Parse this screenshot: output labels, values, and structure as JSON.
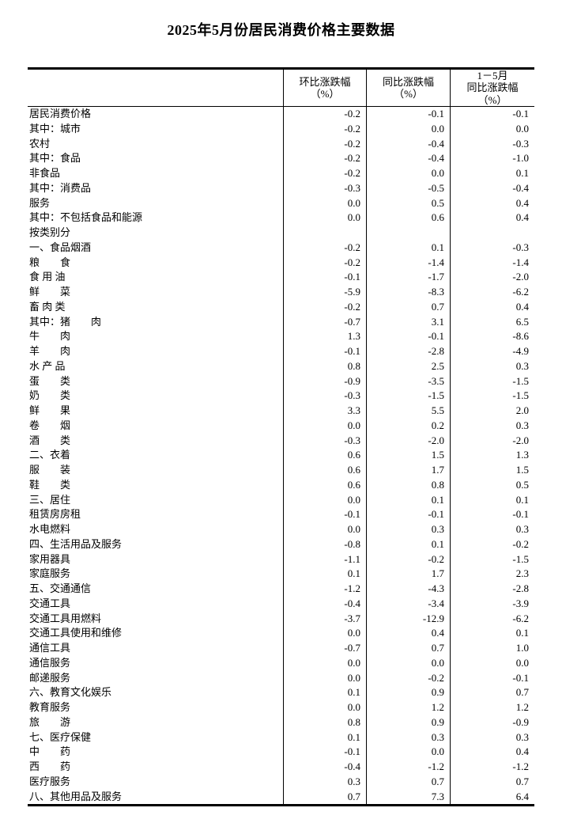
{
  "page": {
    "title": "2025年5月份居民消费价格主要数据"
  },
  "table": {
    "header": {
      "mom": [
        "环比涨跌幅",
        "（%）"
      ],
      "yoy": [
        "同比涨跌幅",
        "（%）"
      ],
      "cum": [
        "1－5月",
        "同比涨跌幅",
        "（%）"
      ]
    },
    "rows": [
      {
        "label": "居民消费价格",
        "indent": 0,
        "mom": "-0.2",
        "yoy": "-0.1",
        "cum": "-0.1"
      },
      {
        "label": "其中：城市",
        "indent": 1,
        "mom": "-0.2",
        "yoy": "0.0",
        "cum": "0.0"
      },
      {
        "label": "农村",
        "indent": 3,
        "mom": "-0.2",
        "yoy": "-0.4",
        "cum": "-0.3"
      },
      {
        "label": "其中：食品",
        "indent": 1,
        "mom": "-0.2",
        "yoy": "-0.4",
        "cum": "-1.0"
      },
      {
        "label": "非食品",
        "indent": 3,
        "mom": "-0.2",
        "yoy": "0.0",
        "cum": "0.1"
      },
      {
        "label": "其中：消费品",
        "indent": 1,
        "mom": "-0.3",
        "yoy": "-0.5",
        "cum": "-0.4"
      },
      {
        "label": "服务",
        "indent": 3,
        "mom": "0.0",
        "yoy": "0.5",
        "cum": "0.4"
      },
      {
        "label": "其中：不包括食品和能源",
        "indent": 1,
        "mom": "0.0",
        "yoy": "0.6",
        "cum": "0.4"
      },
      {
        "label": "按类别分",
        "indent": 0,
        "mom": "",
        "yoy": "",
        "cum": ""
      },
      {
        "label": "一、食品烟酒",
        "indent": 0,
        "mom": "-0.2",
        "yoy": "0.1",
        "cum": "-0.3"
      },
      {
        "label": "粮　　食",
        "indent": 1,
        "mom": "-0.2",
        "yoy": "-1.4",
        "cum": "-1.4"
      },
      {
        "label": "食 用 油",
        "indent": 1,
        "mom": "-0.1",
        "yoy": "-1.7",
        "cum": "-2.0"
      },
      {
        "label": "鲜　　菜",
        "indent": 1,
        "mom": "-5.9",
        "yoy": "-8.3",
        "cum": "-6.2"
      },
      {
        "label": "畜 肉 类",
        "indent": 1,
        "mom": "-0.2",
        "yoy": "0.7",
        "cum": "0.4"
      },
      {
        "label": "其中：猪　　肉",
        "indent": 2,
        "mom": "-0.7",
        "yoy": "3.1",
        "cum": "6.5"
      },
      {
        "label": "牛　　肉",
        "indent": 4,
        "mom": "1.3",
        "yoy": "-0.1",
        "cum": "-8.6"
      },
      {
        "label": "羊　　肉",
        "indent": 4,
        "mom": "-0.1",
        "yoy": "-2.8",
        "cum": "-4.9"
      },
      {
        "label": "水 产 品",
        "indent": 1,
        "mom": "0.8",
        "yoy": "2.5",
        "cum": "0.3"
      },
      {
        "label": "蛋　　类",
        "indent": 1,
        "mom": "-0.9",
        "yoy": "-3.5",
        "cum": "-1.5"
      },
      {
        "label": "奶　　类",
        "indent": 1,
        "mom": "-0.3",
        "yoy": "-1.5",
        "cum": "-1.5"
      },
      {
        "label": "鲜　　果",
        "indent": 1,
        "mom": "3.3",
        "yoy": "5.5",
        "cum": "2.0"
      },
      {
        "label": "卷　　烟",
        "indent": 1,
        "mom": "0.0",
        "yoy": "0.2",
        "cum": "0.3"
      },
      {
        "label": "酒　　类",
        "indent": 1,
        "mom": "-0.3",
        "yoy": "-2.0",
        "cum": "-2.0"
      },
      {
        "label": "二、衣着",
        "indent": 0,
        "mom": "0.6",
        "yoy": "1.5",
        "cum": "1.3"
      },
      {
        "label": "服　　装",
        "indent": 1,
        "mom": "0.6",
        "yoy": "1.7",
        "cum": "1.5"
      },
      {
        "label": "鞋　　类",
        "indent": 1,
        "mom": "0.6",
        "yoy": "0.8",
        "cum": "0.5"
      },
      {
        "label": "三、居住",
        "indent": 0,
        "mom": "0.0",
        "yoy": "0.1",
        "cum": "0.1"
      },
      {
        "label": "租赁房房租",
        "indent": 1,
        "mom": "-0.1",
        "yoy": "-0.1",
        "cum": "-0.1"
      },
      {
        "label": "水电燃料",
        "indent": 1,
        "mom": "0.0",
        "yoy": "0.3",
        "cum": "0.3"
      },
      {
        "label": "四、生活用品及服务",
        "indent": 0,
        "mom": "-0.8",
        "yoy": "0.1",
        "cum": "-0.2"
      },
      {
        "label": "家用器具",
        "indent": 1,
        "mom": "-1.1",
        "yoy": "-0.2",
        "cum": "-1.5"
      },
      {
        "label": "家庭服务",
        "indent": 1,
        "mom": "0.1",
        "yoy": "1.7",
        "cum": "2.3"
      },
      {
        "label": "五、交通通信",
        "indent": 0,
        "mom": "-1.2",
        "yoy": "-4.3",
        "cum": "-2.8"
      },
      {
        "label": "交通工具",
        "indent": 1,
        "mom": "-0.4",
        "yoy": "-3.4",
        "cum": "-3.9"
      },
      {
        "label": "交通工具用燃料",
        "indent": 1,
        "mom": "-3.7",
        "yoy": "-12.9",
        "cum": "-6.2"
      },
      {
        "label": "交通工具使用和维修",
        "indent": 1,
        "mom": "0.0",
        "yoy": "0.4",
        "cum": "0.1"
      },
      {
        "label": "通信工具",
        "indent": 1,
        "mom": "-0.7",
        "yoy": "0.7",
        "cum": "1.0"
      },
      {
        "label": "通信服务",
        "indent": 1,
        "mom": "0.0",
        "yoy": "0.0",
        "cum": "0.0"
      },
      {
        "label": "邮递服务",
        "indent": 1,
        "mom": "0.0",
        "yoy": "-0.2",
        "cum": "-0.1"
      },
      {
        "label": "六、教育文化娱乐",
        "indent": 0,
        "mom": "0.1",
        "yoy": "0.9",
        "cum": "0.7"
      },
      {
        "label": "教育服务",
        "indent": 1,
        "mom": "0.0",
        "yoy": "1.2",
        "cum": "1.2"
      },
      {
        "label": "旅　　游",
        "indent": 1,
        "mom": "0.8",
        "yoy": "0.9",
        "cum": "-0.9"
      },
      {
        "label": "七、医疗保健",
        "indent": 0,
        "mom": "0.1",
        "yoy": "0.3",
        "cum": "0.3"
      },
      {
        "label": "中　　药",
        "indent": 1,
        "mom": "-0.1",
        "yoy": "0.0",
        "cum": "0.4"
      },
      {
        "label": "西　　药",
        "indent": 1,
        "mom": "-0.4",
        "yoy": "-1.2",
        "cum": "-1.2"
      },
      {
        "label": "医疗服务",
        "indent": 1,
        "mom": "0.3",
        "yoy": "0.7",
        "cum": "0.7"
      },
      {
        "label": "八、其他用品及服务",
        "indent": 0,
        "mom": "0.7",
        "yoy": "7.3",
        "cum": "6.4"
      }
    ]
  }
}
